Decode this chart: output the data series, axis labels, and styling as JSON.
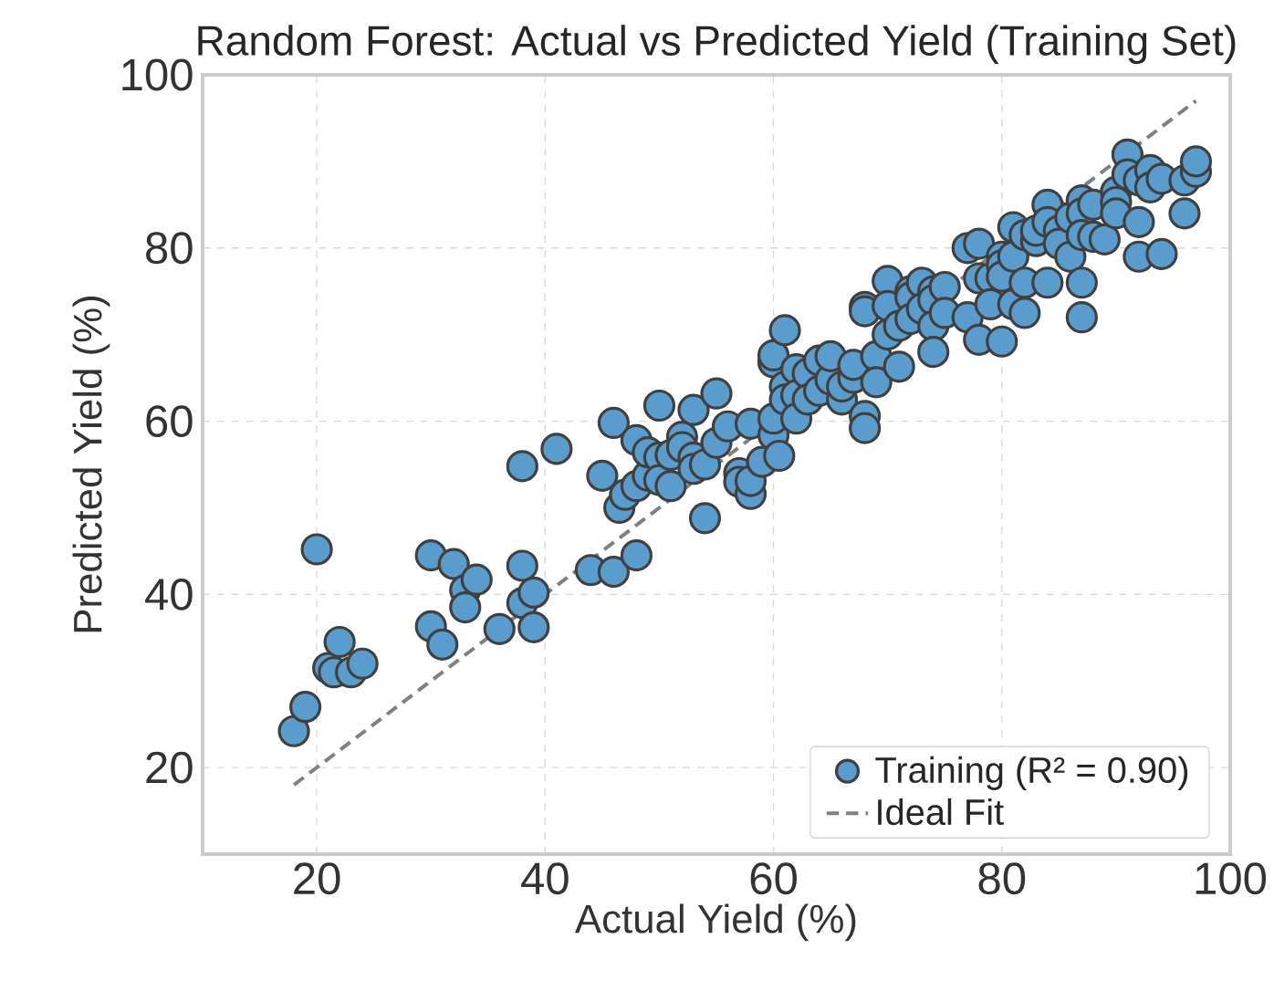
{
  "chart_data": {
    "type": "scatter",
    "title": "Random Forest: Actual vs Predicted Yield (Training Set)",
    "xlabel": "Actual Yield (%)",
    "ylabel": "Predicted Yield (%)",
    "xlim": [
      10,
      100
    ],
    "ylim": [
      10,
      100
    ],
    "xticks": [
      20,
      40,
      60,
      80,
      100
    ],
    "yticks": [
      20,
      40,
      60,
      80,
      100
    ],
    "grid": true,
    "legend": "bottom right",
    "series": [
      {
        "name": "Training (R² = 0.90)",
        "type": "scatter",
        "marker": "circle",
        "color": "#5a9ccc",
        "x": [
          18,
          19,
          20,
          21,
          21.5,
          22,
          23,
          24,
          30,
          30,
          31,
          32,
          33,
          33,
          34,
          36,
          38,
          38,
          38,
          39,
          39,
          41,
          44,
          45,
          46,
          46,
          46.5,
          47,
          48,
          48,
          48,
          49,
          49,
          50,
          50,
          50,
          51,
          51,
          52,
          52,
          53,
          53,
          53,
          54,
          54,
          55,
          55,
          56,
          57,
          57,
          58,
          58,
          58,
          59,
          60,
          60,
          60,
          60,
          60.5,
          61,
          61,
          61,
          62,
          62,
          62,
          63,
          63,
          64,
          64,
          65,
          65,
          66,
          66,
          67,
          67,
          68,
          68,
          68,
          68,
          69,
          69,
          70,
          70,
          70,
          71,
          71,
          72,
          72,
          72,
          73,
          73,
          74,
          74,
          74,
          74,
          75,
          75,
          77,
          77,
          78,
          78,
          78,
          79,
          79,
          80,
          80,
          80,
          80,
          81,
          81,
          81,
          82,
          82,
          82,
          83,
          83,
          84,
          84,
          84,
          85,
          85,
          86,
          86,
          87,
          87,
          87,
          87,
          87,
          88,
          88,
          89,
          90,
          90,
          90,
          91,
          91,
          92,
          92,
          92,
          93,
          93,
          94,
          94,
          96,
          96,
          97,
          97
        ],
        "values": [
          24.2,
          27,
          45.2,
          31.5,
          31,
          34.5,
          31,
          32,
          44.5,
          36.3,
          34.2,
          43.5,
          40.5,
          38.5,
          41.7,
          36,
          54.8,
          43.3,
          39,
          40.2,
          36.2,
          56.8,
          42.8,
          53.7,
          42.6,
          59.8,
          50,
          51.5,
          57.8,
          44.5,
          52.5,
          53.7,
          56.4,
          61.8,
          55.8,
          53.2,
          56.1,
          52.5,
          58.2,
          57,
          55.8,
          54.5,
          61.3,
          48.8,
          55,
          57.5,
          63.2,
          59.4,
          54,
          53,
          51.6,
          53.1,
          59.7,
          55.3,
          58.4,
          66.8,
          67.6,
          60.3,
          56,
          70.5,
          64,
          62.5,
          66,
          63,
          60.3,
          65.5,
          62.5,
          67,
          63.5,
          64.8,
          67.5,
          62.5,
          64,
          65,
          66.5,
          73.2,
          72.7,
          60.6,
          59.2,
          67.5,
          64.5,
          76.2,
          73.3,
          70,
          66.3,
          71,
          75,
          74.3,
          71.8,
          76,
          73,
          75,
          74,
          71,
          68,
          75.5,
          72.5,
          80,
          72,
          80.5,
          76.5,
          69.4,
          76.5,
          73.5,
          79,
          78,
          76.7,
          69.2,
          82.4,
          79,
          73.5,
          76,
          72.5,
          81.5,
          80.8,
          82,
          85,
          83,
          76,
          82,
          80.5,
          83.5,
          79,
          85.5,
          84,
          81.5,
          76,
          72,
          81.3,
          85,
          81,
          86.5,
          85.3,
          84,
          90.8,
          88.5,
          87.8,
          83,
          79,
          89,
          87,
          88,
          79.3,
          84,
          87.8,
          88.8,
          90
        ]
      },
      {
        "name": "Ideal Fit",
        "type": "line",
        "color": "#808080",
        "line_style": "dashed",
        "marker": "none",
        "x": [
          18,
          97
        ],
        "values": [
          18,
          97
        ]
      }
    ]
  }
}
